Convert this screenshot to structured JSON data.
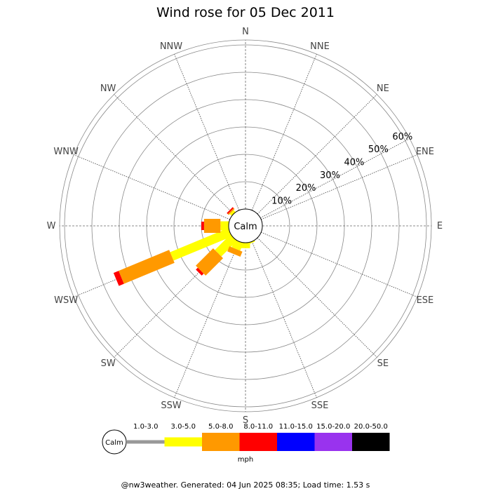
{
  "chart_data": {
    "type": "windrose",
    "title": "Wind rose for 05 Dec 2011",
    "calm_label": "Calm",
    "directions": [
      "N",
      "NNE",
      "NE",
      "ENE",
      "E",
      "ESE",
      "SE",
      "SSE",
      "S",
      "SSW",
      "SW",
      "WSW",
      "W",
      "WNW",
      "NW",
      "NNW"
    ],
    "ring_labels": [
      "10%",
      "20%",
      "30%",
      "40%",
      "50%",
      "60%"
    ],
    "ring_values": [
      10,
      20,
      30,
      40,
      50,
      60
    ],
    "legend": {
      "unit": "mph",
      "bins": [
        {
          "label": "1.0-3.0",
          "color": "#999999"
        },
        {
          "label": "3.0-5.0",
          "color": "#ffff00"
        },
        {
          "label": "5.0-8.0",
          "color": "#ff9900"
        },
        {
          "label": "8.0-11.0",
          "color": "#ff0000"
        },
        {
          "label": "11.0-15.0",
          "color": "#0000ff"
        },
        {
          "label": "15.0-20.0",
          "color": "#9933ee"
        },
        {
          "label": "20.0-50.0",
          "color": "#000000"
        }
      ]
    },
    "series": [
      {
        "direction": "WSW",
        "segments": [
          {
            "bin": "3.0-5.0",
            "value": 23
          },
          {
            "bin": "5.0-8.0",
            "value": 20
          },
          {
            "bin": "8.0-11.0",
            "value": 2
          }
        ]
      },
      {
        "direction": "SW",
        "segments": [
          {
            "bin": "3.0-5.0",
            "value": 8
          },
          {
            "bin": "5.0-8.0",
            "value": 9
          },
          {
            "bin": "8.0-11.0",
            "value": 1
          }
        ]
      },
      {
        "direction": "W",
        "segments": [
          {
            "bin": "3.0-5.0",
            "value": 3
          },
          {
            "bin": "5.0-8.0",
            "value": 6
          },
          {
            "bin": "8.0-11.0",
            "value": 1
          }
        ]
      },
      {
        "direction": "SSW",
        "segments": [
          {
            "bin": "3.0-5.0",
            "value": 3
          },
          {
            "bin": "5.0-8.0",
            "value": 2
          }
        ]
      },
      {
        "direction": "S",
        "segments": [
          {
            "bin": "3.0-5.0",
            "value": 2
          }
        ]
      },
      {
        "direction": "NW",
        "segments": [
          {
            "bin": "3.0-5.0",
            "value": 1
          },
          {
            "bin": "5.0-8.0",
            "value": 0.5
          },
          {
            "bin": "8.0-11.0",
            "value": 0.5
          }
        ]
      },
      {
        "direction": "SSE",
        "segments": [
          {
            "bin": "3.0-5.0",
            "value": 0.5
          }
        ]
      }
    ]
  },
  "footer": "@nw3weather. Generated: 04 Jun 2025 08:35; Load time: 1.53 s"
}
